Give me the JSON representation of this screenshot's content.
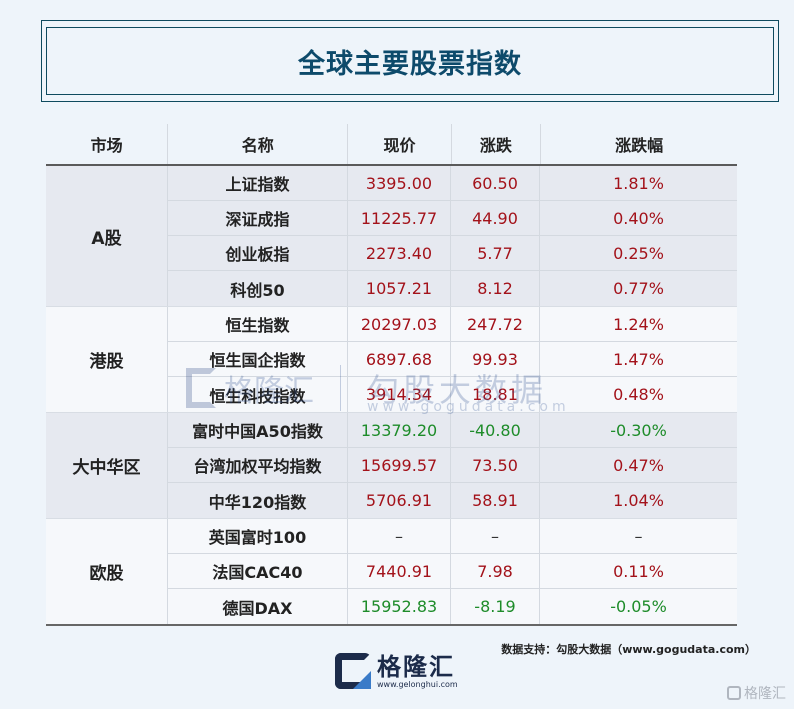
{
  "title": "全球主要股票指数",
  "colors": {
    "title": "#0d4a6b",
    "up": "#a3121a",
    "down": "#1e8c2a",
    "flat": "#333333"
  },
  "table": {
    "headers": [
      "市场",
      "名称",
      "现价",
      "涨跌",
      "涨跌幅"
    ],
    "groups": [
      {
        "market": "A股",
        "rows": [
          {
            "name": "上证指数",
            "price": "3395.00",
            "change": "60.50",
            "pct": "1.81%",
            "trend": "up"
          },
          {
            "name": "深证成指",
            "price": "11225.77",
            "change": "44.90",
            "pct": "0.40%",
            "trend": "up"
          },
          {
            "name": "创业板指",
            "price": "2273.40",
            "change": "5.77",
            "pct": "0.25%",
            "trend": "up"
          },
          {
            "name": "科创50",
            "price": "1057.21",
            "change": "8.12",
            "pct": "0.77%",
            "trend": "up"
          }
        ]
      },
      {
        "market": "港股",
        "rows": [
          {
            "name": "恒生指数",
            "price": "20297.03",
            "change": "247.72",
            "pct": "1.24%",
            "trend": "up"
          },
          {
            "name": "恒生国企指数",
            "price": "6897.68",
            "change": "99.93",
            "pct": "1.47%",
            "trend": "up"
          },
          {
            "name": "恒生科技指数",
            "price": "3914.34",
            "change": "18.81",
            "pct": "0.48%",
            "trend": "up"
          }
        ]
      },
      {
        "market": "大中华区",
        "rows": [
          {
            "name": "富时中国A50指数",
            "price": "13379.20",
            "change": "-40.80",
            "pct": "-0.30%",
            "trend": "down"
          },
          {
            "name": "台湾加权平均指数",
            "price": "15699.57",
            "change": "73.50",
            "pct": "0.47%",
            "trend": "up"
          },
          {
            "name": "中华120指数",
            "price": "5706.91",
            "change": "58.91",
            "pct": "1.04%",
            "trend": "up"
          }
        ]
      },
      {
        "market": "欧股",
        "rows": [
          {
            "name": "英国富时100",
            "price": "–",
            "change": "–",
            "pct": "–",
            "trend": "flat"
          },
          {
            "name": "法国CAC40",
            "price": "7440.91",
            "change": "7.98",
            "pct": "0.11%",
            "trend": "up"
          },
          {
            "name": "德国DAX",
            "price": "15952.83",
            "change": "-8.19",
            "pct": "-0.05%",
            "trend": "down"
          }
        ]
      }
    ]
  },
  "watermark": {
    "brand": "格隆汇",
    "data_brand": "勾股大数据",
    "url": "www.gogudata.com"
  },
  "source": "数据支持：勾股大数据（www.gogudata.com）",
  "logo": {
    "name": "格隆汇",
    "url": "www.gelonghui.com"
  },
  "corner_mark": "格隆汇"
}
